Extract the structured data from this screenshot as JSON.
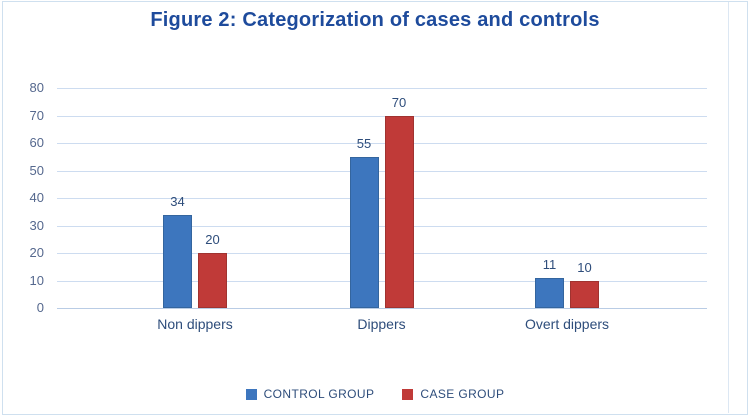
{
  "figure": {
    "title": "Figure 2: Categorization of cases and controls",
    "title_color": "#1e4b9c"
  },
  "chart_data": {
    "type": "bar",
    "title": "Figure 2: Categorization of cases and controls",
    "categories": [
      "Non dippers",
      "Dippers",
      "Overt dippers"
    ],
    "series": [
      {
        "name": "CONTROL GROUP",
        "color": "#3d76be",
        "border_color": "#34659e",
        "values": [
          34,
          55,
          11
        ]
      },
      {
        "name": "CASE GROUP",
        "color": "#c03a38",
        "border_color": "#a03330",
        "values": [
          20,
          70,
          10
        ]
      }
    ],
    "yticks": [
      0,
      10,
      20,
      30,
      40,
      50,
      60,
      70,
      80
    ],
    "ylim": [
      0,
      80
    ],
    "grid": true,
    "data_labels": true,
    "legend_position": "bottom",
    "legend": [
      "CONTROL GROUP",
      "CASE GROUP"
    ],
    "xlabel": "",
    "ylabel": ""
  },
  "colors": {
    "background": "#ffffff",
    "frame_border": "#cfe0ef",
    "gridline": "#cddcf0",
    "axis_line": "#b9cce5",
    "tick_label": "#55688e",
    "data_label": "#2e4d7b",
    "category_label": "#2e4d7b",
    "legend_text": "#2e4d7b"
  }
}
